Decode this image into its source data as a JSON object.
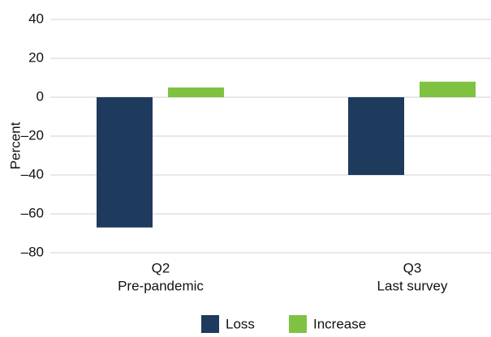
{
  "chart_data": {
    "type": "bar",
    "y_label": "Percent",
    "categories": [
      [
        "Q2",
        "Pre-pandemic"
      ],
      [
        "Q3",
        "Last survey"
      ]
    ],
    "series": [
      {
        "name": "Loss",
        "color": "#1e3a5c",
        "values": [
          -67,
          -40
        ]
      },
      {
        "name": "Increase",
        "color": "#7fc241",
        "values": [
          5,
          8
        ]
      }
    ],
    "ylim": [
      -80,
      40
    ],
    "yticks": [
      {
        "value": -80,
        "label": "–80"
      },
      {
        "value": -60,
        "label": "–60"
      },
      {
        "value": -40,
        "label": "–40"
      },
      {
        "value": -20,
        "label": "–20"
      },
      0,
      20,
      40
    ],
    "grid": true
  }
}
